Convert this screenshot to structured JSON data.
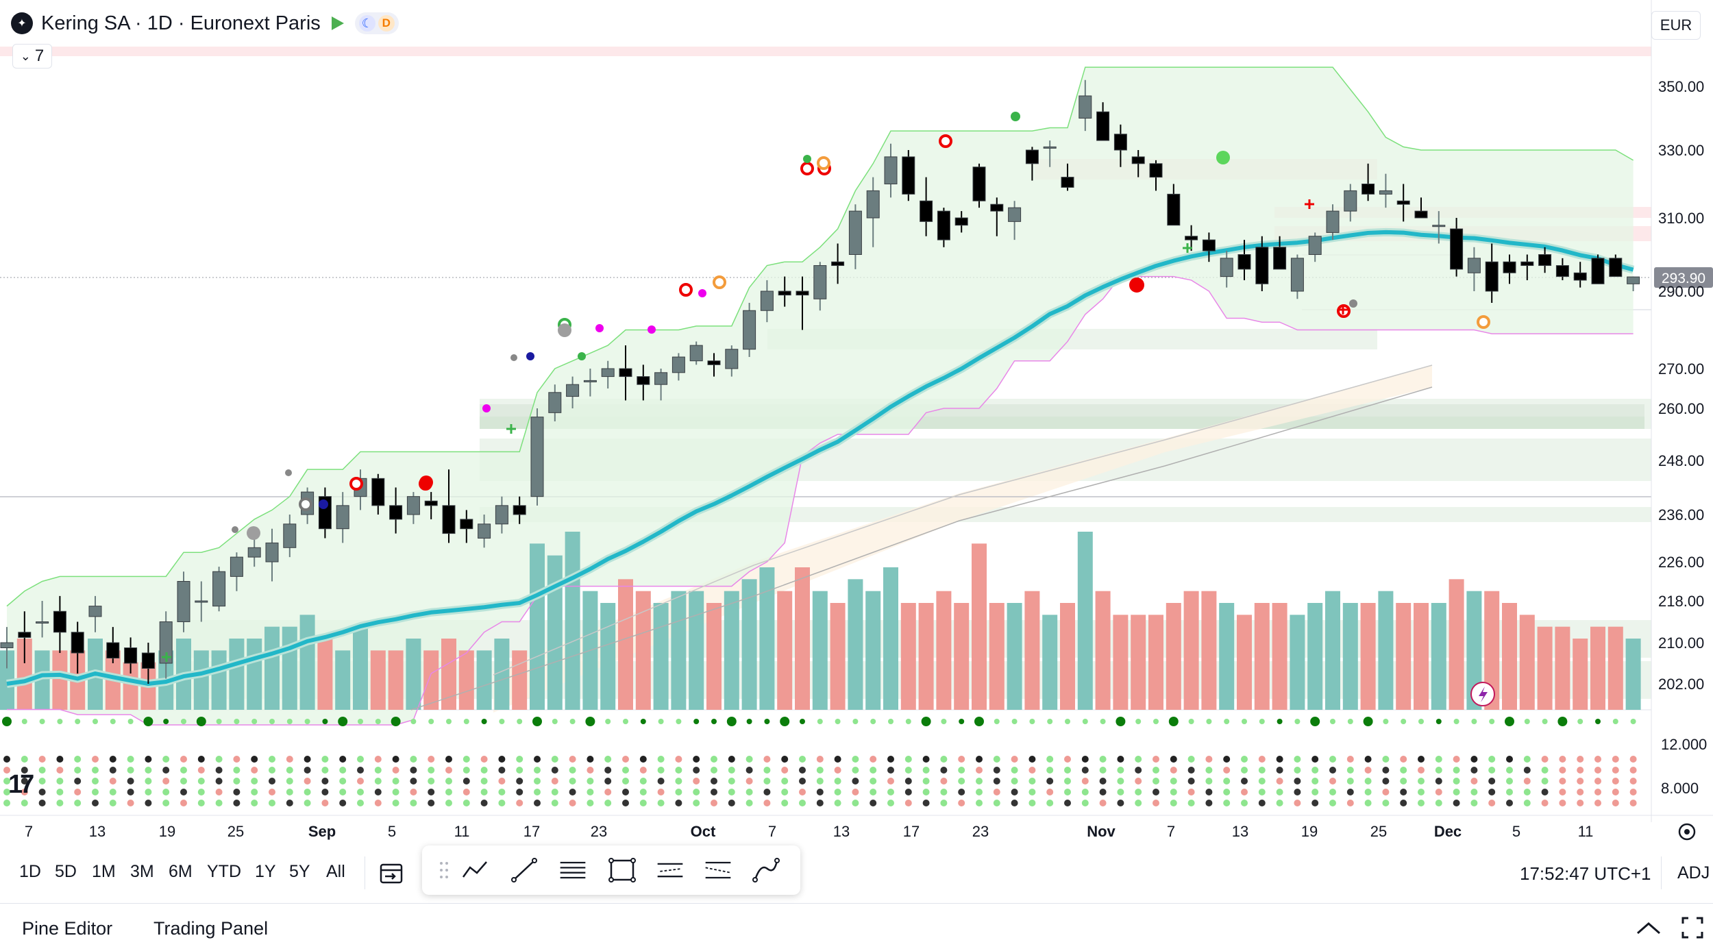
{
  "header": {
    "symbol_title": "Kering SA · 1D · Euronext Paris",
    "market_status_icon": "moon-icon",
    "data_badge": "D",
    "indicators_count": "7",
    "currency": "EUR"
  },
  "chart_data": {
    "type": "candlestick",
    "title": "Kering SA · 1D · Euronext Paris",
    "last_price": 293.9,
    "price_axis_ticks": [
      350.0,
      330.0,
      310.0,
      290.0,
      270.0,
      260.0,
      248.0,
      236.0,
      226.0,
      218.0,
      210.0,
      202.0
    ],
    "volume_axis_ticks": [
      12.0,
      8.0
    ],
    "x_tick_labels": [
      "7",
      "13",
      "19",
      "25",
      "Sep",
      "5",
      "11",
      "17",
      "23",
      "Oct",
      "7",
      "13",
      "17",
      "23",
      "Nov",
      "7",
      "13",
      "19",
      "25",
      "Dec",
      "5",
      "11"
    ],
    "ohlc": [
      [
        209,
        213,
        205,
        210
      ],
      [
        212,
        216,
        206,
        211
      ],
      [
        214,
        218,
        211,
        214
      ],
      [
        216,
        219,
        208,
        212
      ],
      [
        212,
        214,
        204,
        208
      ],
      [
        215,
        219,
        212,
        217
      ],
      [
        210,
        213,
        206,
        207
      ],
      [
        209,
        211,
        204,
        206
      ],
      [
        208,
        210,
        202,
        205
      ],
      [
        206,
        216,
        203,
        214
      ],
      [
        214,
        224,
        212,
        222
      ],
      [
        218,
        222,
        214,
        218
      ],
      [
        217,
        225,
        216,
        224
      ],
      [
        223,
        228,
        220,
        227
      ],
      [
        227,
        231,
        225,
        229
      ],
      [
        226,
        233,
        222,
        230
      ],
      [
        229,
        236,
        227,
        234
      ],
      [
        236,
        242,
        234,
        241
      ],
      [
        240,
        242,
        231,
        233
      ],
      [
        233,
        241,
        230,
        238
      ],
      [
        240,
        246,
        237,
        244
      ],
      [
        244,
        245,
        236,
        238
      ],
      [
        238,
        242,
        232,
        235
      ],
      [
        236,
        241,
        234,
        240
      ],
      [
        239,
        241,
        235,
        238
      ],
      [
        238,
        246,
        230,
        232
      ],
      [
        235,
        237,
        230,
        233
      ],
      [
        231,
        236,
        229,
        234
      ],
      [
        234,
        240,
        232,
        238
      ],
      [
        238,
        240,
        234,
        236
      ],
      [
        240,
        260,
        238,
        258
      ],
      [
        259,
        266,
        257,
        264
      ],
      [
        263,
        268,
        260,
        266
      ],
      [
        267,
        270,
        263,
        267
      ],
      [
        268,
        272,
        265,
        270
      ],
      [
        270,
        276,
        262,
        268
      ],
      [
        268,
        271,
        262,
        266
      ],
      [
        266,
        270,
        262,
        269
      ],
      [
        269,
        274,
        267,
        273
      ],
      [
        272,
        277,
        271,
        276
      ],
      [
        272,
        274,
        268,
        271
      ],
      [
        270,
        276,
        268,
        275
      ],
      [
        275,
        287,
        273,
        285
      ],
      [
        285,
        293,
        282,
        290
      ],
      [
        290,
        294,
        286,
        289
      ],
      [
        290,
        294,
        280,
        289
      ],
      [
        288,
        298,
        285,
        297
      ],
      [
        298,
        303,
        292,
        297
      ],
      [
        300,
        314,
        296,
        312
      ],
      [
        310,
        322,
        302,
        318
      ],
      [
        320,
        332,
        316,
        328
      ],
      [
        328,
        330,
        315,
        317
      ],
      [
        315,
        322,
        305,
        309
      ],
      [
        312,
        313,
        302,
        304
      ],
      [
        310,
        312,
        306,
        308
      ],
      [
        325,
        326,
        313,
        315
      ],
      [
        314,
        316,
        305,
        312
      ],
      [
        309,
        315,
        304,
        313
      ],
      [
        330,
        331,
        321,
        326
      ],
      [
        331,
        333,
        325,
        331
      ],
      [
        322,
        326,
        318,
        319
      ],
      [
        340,
        352,
        336,
        347
      ],
      [
        342,
        345,
        333,
        333
      ],
      [
        335,
        338,
        325,
        330
      ],
      [
        328,
        330,
        322,
        326
      ],
      [
        326,
        327,
        318,
        322
      ],
      [
        317,
        320,
        308,
        308
      ],
      [
        305,
        308,
        301,
        304
      ],
      [
        304,
        306,
        298,
        301
      ],
      [
        294,
        301,
        291,
        299
      ],
      [
        300,
        304,
        293,
        296
      ],
      [
        302,
        305,
        290,
        292
      ],
      [
        302,
        305,
        296,
        296
      ],
      [
        290,
        300,
        288,
        299
      ],
      [
        300,
        306,
        298,
        305
      ],
      [
        306,
        314,
        304,
        312
      ],
      [
        312,
        320,
        309,
        318
      ],
      [
        320,
        326,
        315,
        317
      ],
      [
        317,
        323,
        313,
        318
      ],
      [
        315,
        320,
        309,
        314
      ],
      [
        312,
        316,
        310,
        310
      ],
      [
        308,
        312,
        303,
        308
      ],
      [
        307,
        310,
        294,
        296
      ],
      [
        295,
        302,
        290,
        299
      ],
      [
        298,
        303,
        287,
        290
      ],
      [
        298,
        300,
        292,
        295
      ],
      [
        298,
        300,
        293,
        297
      ],
      [
        300,
        302,
        295,
        297
      ],
      [
        297,
        299,
        293,
        294
      ],
      [
        295,
        298,
        291,
        293
      ],
      [
        299,
        300,
        292,
        292
      ],
      [
        299,
        300,
        295,
        294
      ],
      [
        292,
        294,
        290,
        293.9
      ]
    ],
    "volume": [
      5,
      6,
      5,
      5,
      5,
      6,
      5,
      4,
      4,
      5,
      6,
      5,
      5,
      6,
      6,
      7,
      7,
      8,
      6,
      5,
      7,
      5,
      5,
      6,
      5,
      6,
      5,
      5,
      6,
      5,
      14,
      13,
      15,
      10,
      9,
      11,
      10,
      9,
      10,
      10,
      9,
      10,
      11,
      12,
      10,
      12,
      10,
      9,
      11,
      10,
      12,
      9,
      9,
      10,
      9,
      14,
      9,
      9,
      10,
      8,
      9,
      15,
      10,
      8,
      8,
      8,
      9,
      10,
      10,
      9,
      8,
      9,
      9,
      8,
      9,
      10,
      9,
      9,
      10,
      9,
      9,
      9,
      11,
      10,
      10,
      9,
      8,
      7,
      7,
      6,
      7,
      7,
      6
    ],
    "series": [
      {
        "name": "",
        "kind": "moving-average-thick",
        "color": "#22b7c8"
      },
      {
        "name": "",
        "kind": "moving-average-thin",
        "color": "#b0b0b0"
      },
      {
        "name": "",
        "kind": "channel-upper",
        "color": "#7ce07c"
      },
      {
        "name": "",
        "kind": "channel-lower",
        "color": "#e887e8"
      }
    ],
    "up_color": "#6b7d7f",
    "down_color": "#000000",
    "volume_up_color": "#7fc4bc",
    "volume_down_color": "#ef9a94",
    "grid": true
  },
  "timeframes": [
    "1D",
    "5D",
    "1M",
    "3M",
    "6M",
    "YTD",
    "1Y",
    "5Y",
    "All"
  ],
  "drawing_tools": [
    "date-range-icon",
    "drag-handle-icon",
    "trend-line-icon",
    "ray-line-icon",
    "parallel-lines-icon",
    "rectangle-icon",
    "fib-icon",
    "regression-icon",
    "path-icon"
  ],
  "status": {
    "clock": "17:52:47 UTC+1",
    "adj": "ADJ"
  },
  "panel_tabs": [
    "Pine Editor",
    "Trading Panel"
  ],
  "colors": {
    "price_label_bg": "#868993",
    "resistance_zone": "#fde8ea",
    "support_zone": "#e9f2e9"
  }
}
